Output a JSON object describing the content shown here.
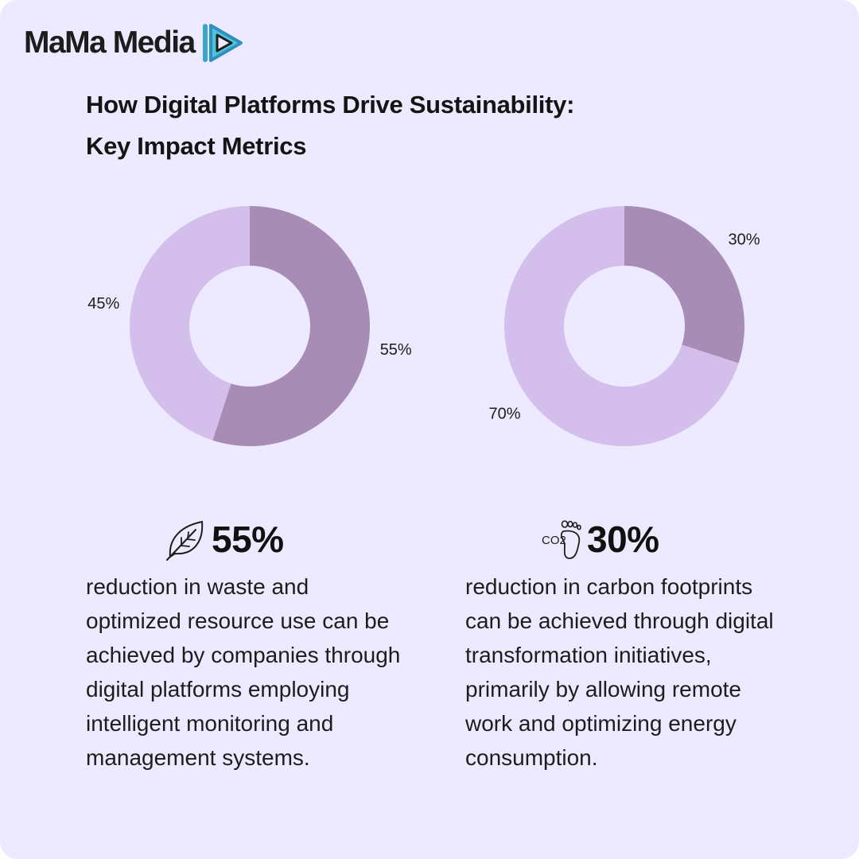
{
  "brand": {
    "name": "MaMa Media",
    "logo_icon": "play-triangle-icon"
  },
  "title": {
    "line1": "How Digital Platforms Drive Sustainability:",
    "line2": "Key Impact Metrics"
  },
  "colors": {
    "background": "#ede9fe",
    "dark_slice": "#a78cb6",
    "light_slice": "#d4bfec"
  },
  "chart_data": [
    {
      "type": "pie",
      "donut": true,
      "slices": [
        {
          "label": "55%",
          "value": 55,
          "color": "#a78cb6"
        },
        {
          "label": "45%",
          "value": 45,
          "color": "#d4bfec"
        }
      ]
    },
    {
      "type": "pie",
      "donut": true,
      "slices": [
        {
          "label": "30%",
          "value": 30,
          "color": "#a78cb6"
        },
        {
          "label": "70%",
          "value": 70,
          "color": "#d4bfec"
        }
      ]
    }
  ],
  "stats": [
    {
      "icon": "leaf-icon",
      "value": "55%",
      "lines": [
        "reduction in waste and",
        "optimized resource use can be",
        "achieved by companies through",
        "digital platforms employing",
        "intelligent monitoring and",
        "management systems."
      ]
    },
    {
      "icon": "co2-footprint-icon",
      "icon_text": "CO2",
      "value": "30%",
      "lines": [
        "reduction in carbon footprints",
        "can be achieved through digital",
        "transformation initiatives,",
        "primarily by allowing remote",
        "work and optimizing energy",
        "consumption."
      ]
    }
  ]
}
